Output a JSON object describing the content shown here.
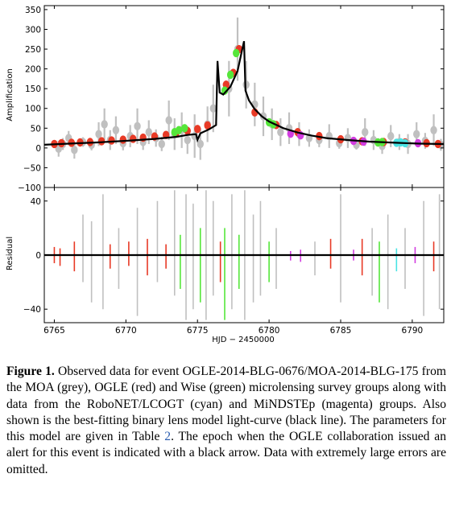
{
  "chart_data": [
    {
      "type": "scatter",
      "panel": "top",
      "xlabel": "",
      "ylabel": "Amplification",
      "xlim": [
        6764.3,
        6792.2
      ],
      "ylim": [
        -100,
        360
      ],
      "yticks": [
        -100,
        -50,
        0,
        50,
        100,
        150,
        200,
        250,
        300,
        350
      ],
      "ytick_labels": [
        "−100",
        "−50",
        "0",
        "50",
        "100",
        "150",
        "200",
        "250",
        "300",
        "350"
      ],
      "colors": {
        "MOA": "#c0c0c0",
        "OGLE": "#e83a26",
        "Wise": "#55e63a",
        "RoboNET/LCOGT": "#49e3e3",
        "MiNDSTEp": "#d23ce0",
        "model": "#000000"
      },
      "series": [
        {
          "group": "MOA",
          "color": "#c0c0c0",
          "points": [
            [
              6765.3,
              -2,
              20
            ],
            [
              6765.6,
              10,
              15
            ],
            [
              6766.0,
              25,
              18
            ],
            [
              6766.4,
              -5,
              22
            ],
            [
              6767.0,
              15,
              12
            ],
            [
              6767.6,
              8,
              14
            ],
            [
              6768.1,
              35,
              30
            ],
            [
              6768.5,
              60,
              40
            ],
            [
              6768.9,
              20,
              25
            ],
            [
              6769.3,
              45,
              35
            ],
            [
              6769.8,
              12,
              18
            ],
            [
              6770.3,
              30,
              28
            ],
            [
              6770.8,
              55,
              45
            ],
            [
              6771.2,
              15,
              20
            ],
            [
              6771.6,
              40,
              30
            ],
            [
              6772.1,
              25,
              22
            ],
            [
              6772.5,
              10,
              18
            ],
            [
              6773.0,
              70,
              50
            ],
            [
              6773.4,
              35,
              40
            ],
            [
              6773.9,
              45,
              45
            ],
            [
              6774.3,
              20,
              35
            ],
            [
              6774.8,
              30,
              55
            ],
            [
              6775.2,
              10,
              40
            ],
            [
              6775.7,
              60,
              45
            ],
            [
              6776.1,
              100,
              60
            ],
            [
              6777.2,
              150,
              70
            ],
            [
              6777.8,
              250,
              80
            ],
            [
              6778.4,
              160,
              60
            ],
            [
              6779.0,
              110,
              55
            ],
            [
              6779.6,
              80,
              50
            ],
            [
              6780.2,
              60,
              40
            ],
            [
              6780.8,
              40,
              35
            ],
            [
              6781.4,
              50,
              40
            ],
            [
              6782.1,
              35,
              30
            ],
            [
              6782.8,
              25,
              22
            ],
            [
              6783.5,
              20,
              18
            ],
            [
              6784.2,
              30,
              30
            ],
            [
              6784.9,
              12,
              14
            ],
            [
              6785.5,
              25,
              25
            ],
            [
              6786.1,
              8,
              12
            ],
            [
              6786.7,
              40,
              35
            ],
            [
              6787.3,
              20,
              25
            ],
            [
              6787.9,
              5,
              20
            ],
            [
              6788.5,
              30,
              28
            ],
            [
              6789.1,
              15,
              20
            ],
            [
              6789.7,
              10,
              25
            ],
            [
              6790.3,
              35,
              30
            ],
            [
              6790.9,
              18,
              20
            ],
            [
              6791.5,
              45,
              40
            ],
            [
              6792.0,
              8,
              15
            ]
          ]
        },
        {
          "group": "OGLE",
          "color": "#e83a26",
          "points": [
            [
              6765.0,
              10
            ],
            [
              6765.5,
              12
            ],
            [
              6766.2,
              13
            ],
            [
              6766.8,
              14
            ],
            [
              6767.5,
              15
            ],
            [
              6768.3,
              17
            ],
            [
              6769.0,
              19
            ],
            [
              6769.8,
              21
            ],
            [
              6770.5,
              23
            ],
            [
              6771.2,
              26
            ],
            [
              6772.0,
              29
            ],
            [
              6772.8,
              33
            ],
            [
              6773.5,
              37
            ],
            [
              6774.3,
              43
            ],
            [
              6775.0,
              48
            ],
            [
              6775.7,
              57
            ],
            [
              6777.0,
              160
            ],
            [
              6777.5,
              190
            ],
            [
              6777.9,
              250
            ],
            [
              6779.0,
              90
            ],
            [
              6780.5,
              58
            ],
            [
              6782.0,
              40
            ],
            [
              6783.5,
              30
            ],
            [
              6785.0,
              22
            ],
            [
              6786.5,
              17
            ],
            [
              6788.0,
              15
            ],
            [
              6789.5,
              14
            ],
            [
              6791.0,
              12
            ],
            [
              6791.8,
              10
            ]
          ]
        },
        {
          "group": "Wise",
          "color": "#55e63a",
          "points": [
            [
              6773.4,
              40
            ],
            [
              6773.7,
              45
            ],
            [
              6774.1,
              50
            ],
            [
              6776.9,
              145
            ],
            [
              6777.3,
              185
            ],
            [
              6777.7,
              240
            ],
            [
              6780.0,
              65
            ],
            [
              6780.3,
              60
            ],
            [
              6787.6,
              14
            ],
            [
              6787.9,
              15
            ]
          ]
        },
        {
          "group": "RoboNET/LCOGT",
          "color": "#49e3e3",
          "points": [
            [
              6788.9,
              13
            ],
            [
              6789.2,
              14
            ],
            [
              6789.5,
              12
            ]
          ]
        },
        {
          "group": "MiNDSTEp",
          "color": "#d23ce0",
          "points": [
            [
              6781.5,
              36
            ],
            [
              6782.2,
              32
            ],
            [
              6785.9,
              18
            ],
            [
              6786.6,
              16
            ],
            [
              6790.4,
              12
            ]
          ]
        }
      ],
      "model_line": [
        [
          6764.3,
          8
        ],
        [
          6766,
          11
        ],
        [
          6768,
          14
        ],
        [
          6770,
          18
        ],
        [
          6772,
          23
        ],
        [
          6773.5,
          28
        ],
        [
          6774.3,
          33
        ],
        [
          6774.9,
          35
        ],
        [
          6775.0,
          20
        ],
        [
          6775.2,
          37
        ],
        [
          6775.8,
          47
        ],
        [
          6776.3,
          58
        ],
        [
          6776.4,
          220
        ],
        [
          6776.55,
          140
        ],
        [
          6776.8,
          135
        ],
        [
          6777.3,
          155
        ],
        [
          6777.8,
          195
        ],
        [
          6778.1,
          245
        ],
        [
          6778.25,
          270
        ],
        [
          6778.35,
          145
        ],
        [
          6778.6,
          120
        ],
        [
          6779.0,
          98
        ],
        [
          6779.5,
          80
        ],
        [
          6780.0,
          67
        ],
        [
          6781.0,
          50
        ],
        [
          6782.0,
          39
        ],
        [
          6783.0,
          31
        ],
        [
          6784.0,
          25
        ],
        [
          6785.5,
          20
        ],
        [
          6787.0,
          16
        ],
        [
          6789.0,
          13
        ],
        [
          6790.5,
          11
        ],
        [
          6792.2,
          10
        ]
      ]
    },
    {
      "type": "scatter",
      "panel": "bottom",
      "xlabel": "HJD − 2450000",
      "ylabel": "Residual",
      "xlim": [
        6764.3,
        6792.2
      ],
      "ylim": [
        -50,
        50
      ],
      "yticks": [
        -40,
        0,
        40
      ],
      "ytick_labels": [
        "−40",
        "0",
        "40"
      ],
      "xticks": [
        6765,
        6770,
        6775,
        6780,
        6785,
        6790
      ],
      "xtick_labels": [
        "6765",
        "6770",
        "6775",
        "6780",
        "6785",
        "6790"
      ],
      "residual_bars": [
        {
          "x": 6765.0,
          "lo": -6,
          "hi": 6,
          "color": "#e83a26"
        },
        {
          "x": 6765.4,
          "lo": -8,
          "hi": 5,
          "color": "#e83a26"
        },
        {
          "x": 6766.4,
          "lo": -12,
          "hi": 10,
          "color": "#e83a26"
        },
        {
          "x": 6767.0,
          "lo": -20,
          "hi": 30,
          "color": "#c0c0c0"
        },
        {
          "x": 6767.6,
          "lo": -35,
          "hi": 25,
          "color": "#c0c0c0"
        },
        {
          "x": 6768.4,
          "lo": -40,
          "hi": 45,
          "color": "#c0c0c0"
        },
        {
          "x": 6768.9,
          "lo": -10,
          "hi": 8,
          "color": "#e83a26"
        },
        {
          "x": 6769.5,
          "lo": -25,
          "hi": 20,
          "color": "#c0c0c0"
        },
        {
          "x": 6770.2,
          "lo": -8,
          "hi": 10,
          "color": "#e83a26"
        },
        {
          "x": 6770.8,
          "lo": -45,
          "hi": 35,
          "color": "#c0c0c0"
        },
        {
          "x": 6771.5,
          "lo": -15,
          "hi": 12,
          "color": "#e83a26"
        },
        {
          "x": 6772.2,
          "lo": -20,
          "hi": 40,
          "color": "#c0c0c0"
        },
        {
          "x": 6772.8,
          "lo": -10,
          "hi": 8,
          "color": "#e83a26"
        },
        {
          "x": 6773.4,
          "lo": -30,
          "hi": 48,
          "color": "#c0c0c0"
        },
        {
          "x": 6773.8,
          "lo": -25,
          "hi": 15,
          "color": "#55e63a"
        },
        {
          "x": 6774.2,
          "lo": -48,
          "hi": 45,
          "color": "#c0c0c0"
        },
        {
          "x": 6774.7,
          "lo": -40,
          "hi": 38,
          "color": "#c0c0c0"
        },
        {
          "x": 6775.2,
          "lo": -35,
          "hi": 20,
          "color": "#55e63a"
        },
        {
          "x": 6775.6,
          "lo": -48,
          "hi": 48,
          "color": "#c0c0c0"
        },
        {
          "x": 6776.1,
          "lo": -30,
          "hi": 40,
          "color": "#c0c0c0"
        },
        {
          "x": 6776.6,
          "lo": -20,
          "hi": 10,
          "color": "#e83a26"
        },
        {
          "x": 6776.9,
          "lo": -48,
          "hi": 20,
          "color": "#55e63a"
        },
        {
          "x": 6777.4,
          "lo": -40,
          "hi": 45,
          "color": "#c0c0c0"
        },
        {
          "x": 6777.9,
          "lo": -25,
          "hi": 15,
          "color": "#55e63a"
        },
        {
          "x": 6778.3,
          "lo": -48,
          "hi": 48,
          "color": "#c0c0c0"
        },
        {
          "x": 6778.9,
          "lo": -35,
          "hi": 30,
          "color": "#c0c0c0"
        },
        {
          "x": 6779.4,
          "lo": -30,
          "hi": 40,
          "color": "#c0c0c0"
        },
        {
          "x": 6780.0,
          "lo": -20,
          "hi": 10,
          "color": "#55e63a"
        },
        {
          "x": 6780.5,
          "lo": -25,
          "hi": 20,
          "color": "#c0c0c0"
        },
        {
          "x": 6781.5,
          "lo": -4,
          "hi": 3,
          "color": "#d23ce0"
        },
        {
          "x": 6782.2,
          "lo": -5,
          "hi": 4,
          "color": "#d23ce0"
        },
        {
          "x": 6783.2,
          "lo": -15,
          "hi": 10,
          "color": "#c0c0c0"
        },
        {
          "x": 6784.3,
          "lo": -10,
          "hi": 12,
          "color": "#e83a26"
        },
        {
          "x": 6785.0,
          "lo": -35,
          "hi": 45,
          "color": "#c0c0c0"
        },
        {
          "x": 6785.9,
          "lo": -4,
          "hi": 4,
          "color": "#d23ce0"
        },
        {
          "x": 6786.5,
          "lo": -15,
          "hi": 12,
          "color": "#e83a26"
        },
        {
          "x": 6787.2,
          "lo": -30,
          "hi": 20,
          "color": "#c0c0c0"
        },
        {
          "x": 6787.7,
          "lo": -35,
          "hi": 10,
          "color": "#55e63a"
        },
        {
          "x": 6788.3,
          "lo": -40,
          "hi": 30,
          "color": "#c0c0c0"
        },
        {
          "x": 6788.9,
          "lo": -12,
          "hi": 5,
          "color": "#49e3e3"
        },
        {
          "x": 6789.5,
          "lo": -25,
          "hi": 20,
          "color": "#c0c0c0"
        },
        {
          "x": 6790.2,
          "lo": -6,
          "hi": 6,
          "color": "#d23ce0"
        },
        {
          "x": 6790.8,
          "lo": -45,
          "hi": 40,
          "color": "#c0c0c0"
        },
        {
          "x": 6791.5,
          "lo": -12,
          "hi": 10,
          "color": "#e83a26"
        },
        {
          "x": 6791.9,
          "lo": -40,
          "hi": 45,
          "color": "#c0c0c0"
        }
      ],
      "zero_line": 0
    }
  ],
  "caption": {
    "label": "Figure 1.",
    "text_before_ref": " Observed data for event OGLE-2014-BLG-0676/MOA-2014-BLG-175 from the MOA (grey), OGLE (red) and Wise (green) microlensing survey groups along with data from the RoboNET/LCOGT (cyan) and MiNDSTEp (magenta) groups. Also shown is the best-fitting binary lens model light-curve (black line). The parameters for this model are given in Table ",
    "ref": "2",
    "text_after_ref": ". The epoch when the OGLE collaboration issued an alert for this event is indicated with a black arrow. Data with extremely large errors are omitted."
  }
}
